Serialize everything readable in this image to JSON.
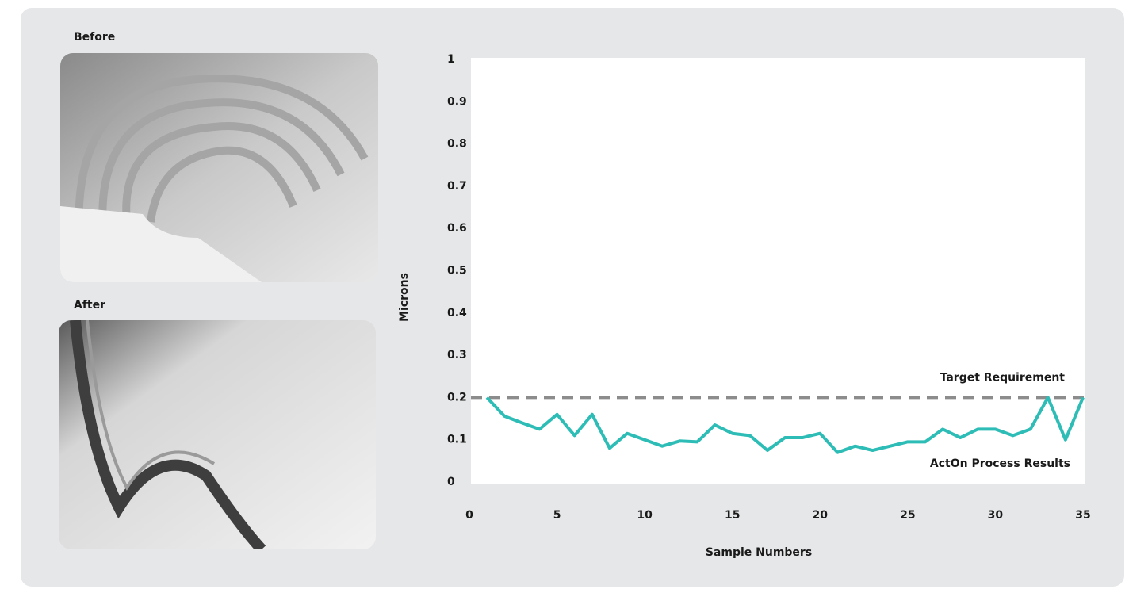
{
  "images": [
    {
      "label": "Before"
    },
    {
      "label": "After"
    }
  ],
  "chart_data": {
    "type": "line",
    "x_label": "Sample Numbers",
    "y_label": "Microns",
    "x": [
      1,
      2,
      3,
      4,
      5,
      6,
      7,
      8,
      9,
      10,
      11,
      12,
      13,
      14,
      15,
      16,
      17,
      18,
      19,
      20,
      21,
      22,
      23,
      24,
      25,
      26,
      27,
      28,
      29,
      30,
      31,
      32,
      33,
      34,
      35
    ],
    "series": [
      {
        "name": "ActOn Process Results",
        "color": "#2dbdb6",
        "values": [
          0.2,
          0.156,
          0.14,
          0.125,
          0.16,
          0.11,
          0.16,
          0.08,
          0.115,
          0.1,
          0.085,
          0.097,
          0.095,
          0.135,
          0.115,
          0.11,
          0.075,
          0.105,
          0.105,
          0.115,
          0.07,
          0.085,
          0.075,
          0.085,
          0.095,
          0.095,
          0.125,
          0.105,
          0.125,
          0.125,
          0.11,
          0.125,
          0.2,
          0.1,
          0.2
        ]
      }
    ],
    "target": {
      "name": "Target Requirement",
      "value": 0.2,
      "color": "#8c8c8c"
    },
    "xlim": [
      0,
      35
    ],
    "xticks": [
      0,
      5,
      10,
      15,
      20,
      25,
      30,
      35
    ],
    "ylim": [
      0,
      1
    ],
    "yticks": [
      0,
      0.1,
      0.2,
      0.3,
      0.4,
      0.5,
      0.6,
      0.7,
      0.8,
      0.9,
      1
    ]
  }
}
